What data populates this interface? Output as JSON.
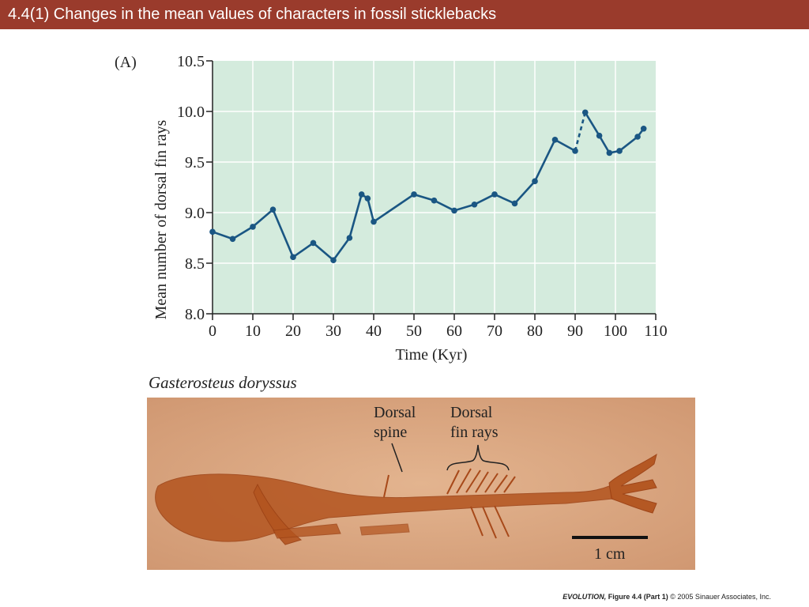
{
  "slide": {
    "title": "4.4(1)  Changes in the mean values of characters in fossil sticklebacks",
    "title_bar_color": "#9a3b2c",
    "footer": {
      "book": "EVOLUTION,",
      "figure": " Figure 4.4 (Part 1)",
      "copyright": "  © 2005 Sinauer Associates, Inc."
    }
  },
  "chart_data": {
    "type": "line",
    "panel_label": "(A)",
    "xlabel": "Time (Kyr)",
    "ylabel": "Mean number of dorsal fin rays",
    "xlim": [
      0,
      110
    ],
    "ylim": [
      8.0,
      10.5
    ],
    "x_ticks": [
      "0",
      "10",
      "20",
      "30",
      "40",
      "50",
      "60",
      "70",
      "80",
      "90",
      "100",
      "110"
    ],
    "y_ticks": [
      "8.0",
      "8.5",
      "9.0",
      "9.5",
      "10.0",
      "10.5"
    ],
    "grid": true,
    "plot_background": "#d4ebdd",
    "line_color": "#1a5683",
    "series": [
      {
        "points": [
          {
            "x": 0,
            "y": 8.81
          },
          {
            "x": 5,
            "y": 8.74
          },
          {
            "x": 10,
            "y": 8.86
          },
          {
            "x": 15,
            "y": 9.03
          },
          {
            "x": 20,
            "y": 8.56
          },
          {
            "x": 25,
            "y": 8.7
          },
          {
            "x": 30,
            "y": 8.53
          },
          {
            "x": 34,
            "y": 8.75
          },
          {
            "x": 37,
            "y": 9.18
          },
          {
            "x": 38.5,
            "y": 9.14
          },
          {
            "x": 40,
            "y": 8.91
          },
          {
            "x": 50,
            "y": 9.18
          },
          {
            "x": 55,
            "y": 9.12
          },
          {
            "x": 60,
            "y": 9.02
          },
          {
            "x": 65,
            "y": 9.08
          },
          {
            "x": 70,
            "y": 9.18
          },
          {
            "x": 75,
            "y": 9.09
          },
          {
            "x": 80,
            "y": 9.31
          },
          {
            "x": 85,
            "y": 9.72
          },
          {
            "x": 90,
            "y": 9.61
          },
          {
            "x": 92.5,
            "y": 9.99
          },
          {
            "x": 96,
            "y": 9.76
          },
          {
            "x": 98.5,
            "y": 9.59
          },
          {
            "x": 101,
            "y": 9.61
          },
          {
            "x": 105.5,
            "y": 9.75
          },
          {
            "x": 107,
            "y": 9.83
          }
        ],
        "dashed_segment_after_x": 90
      }
    ]
  },
  "photo": {
    "species_label": "Gasterosteus doryssus",
    "dorsal_spine_label": [
      "Dorsal",
      "spine"
    ],
    "dorsal_fin_rays_label": [
      "Dorsal",
      "fin rays"
    ],
    "scale_bar_label": "1 cm"
  }
}
